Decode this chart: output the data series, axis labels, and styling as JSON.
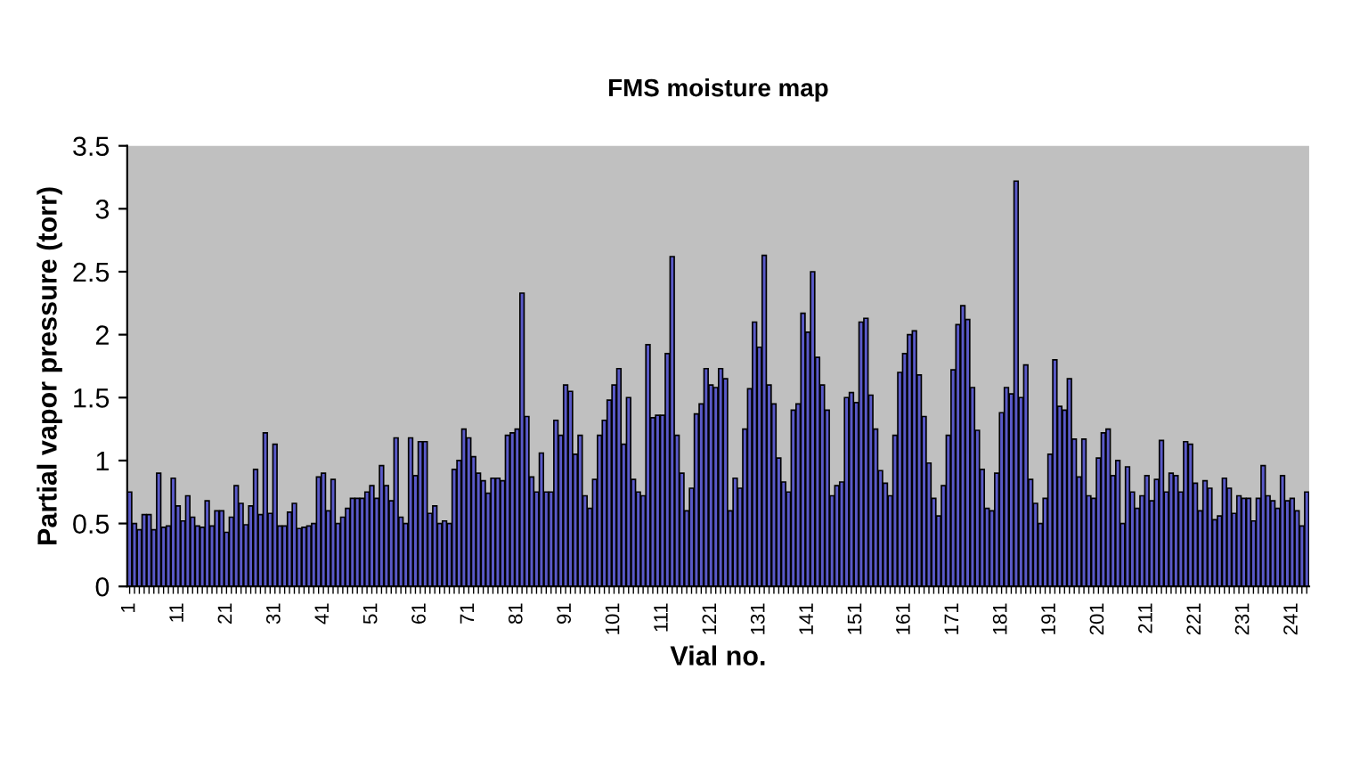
{
  "chart_data": {
    "type": "bar",
    "title": "FMS moisture map",
    "xlabel": "Vial no.",
    "ylabel": "Partial vapor pressure (torr)",
    "categories": [
      "1",
      null,
      null,
      null,
      null,
      null,
      null,
      null,
      null,
      null,
      "11",
      null,
      null,
      null,
      null,
      null,
      null,
      null,
      null,
      null,
      "21",
      null,
      null,
      null,
      null,
      null,
      null,
      null,
      null,
      null,
      "31",
      null,
      null,
      null,
      null,
      null,
      null,
      null,
      null,
      null,
      "41",
      null,
      null,
      null,
      null,
      null,
      null,
      null,
      null,
      null,
      "51",
      null,
      null,
      null,
      null,
      null,
      null,
      null,
      null,
      null,
      "61",
      null,
      null,
      null,
      null,
      null,
      null,
      null,
      null,
      null,
      "71",
      null,
      null,
      null,
      null,
      null,
      null,
      null,
      null,
      null,
      "81",
      null,
      null,
      null,
      null,
      null,
      null,
      null,
      null,
      null,
      "91",
      null,
      null,
      null,
      null,
      null,
      null,
      null,
      null,
      null,
      "101",
      null,
      null,
      null,
      null,
      null,
      null,
      null,
      null,
      null,
      "111",
      null,
      null,
      null,
      null,
      null,
      null,
      null,
      null,
      null,
      "121",
      null,
      null,
      null,
      null,
      null,
      null,
      null,
      null,
      null,
      "131",
      null,
      null,
      null,
      null,
      null,
      null,
      null,
      null,
      null,
      "141",
      null,
      null,
      null,
      null,
      null,
      null,
      null,
      null,
      null,
      "151",
      null,
      null,
      null,
      null,
      null,
      null,
      null,
      null,
      null,
      "161",
      null,
      null,
      null,
      null,
      null,
      null,
      null,
      null,
      null,
      "171",
      null,
      null,
      null,
      null,
      null,
      null,
      null,
      null,
      null,
      "181",
      null,
      null,
      null,
      null,
      null,
      null,
      null,
      null,
      null,
      "191",
      null,
      null,
      null,
      null,
      null,
      null,
      null,
      null,
      null,
      "201",
      null,
      null,
      null,
      null,
      null,
      null,
      null,
      null,
      null,
      "211",
      null,
      null,
      null,
      null,
      null,
      null,
      null,
      null,
      null,
      "221",
      null,
      null,
      null,
      null,
      null,
      null,
      null,
      null,
      null,
      "231",
      null,
      null,
      null,
      null,
      null,
      null,
      null,
      null,
      null,
      "241",
      null,
      null,
      null
    ],
    "values": [
      0.75,
      0.5,
      0.45,
      0.57,
      0.57,
      0.45,
      0.9,
      0.47,
      0.48,
      0.86,
      0.64,
      0.52,
      0.72,
      0.55,
      0.48,
      0.47,
      0.68,
      0.48,
      0.6,
      0.6,
      0.43,
      0.55,
      0.8,
      0.66,
      0.49,
      0.64,
      0.93,
      0.57,
      1.22,
      0.58,
      1.13,
      0.48,
      0.48,
      0.59,
      0.66,
      0.46,
      0.47,
      0.48,
      0.5,
      0.87,
      0.9,
      0.6,
      0.85,
      0.5,
      0.55,
      0.62,
      0.7,
      0.7,
      0.7,
      0.75,
      0.8,
      0.7,
      0.96,
      0.8,
      0.68,
      1.18,
      0.55,
      0.5,
      1.18,
      0.88,
      1.15,
      1.15,
      0.58,
      0.64,
      0.5,
      0.52,
      0.5,
      0.93,
      1.0,
      1.25,
      1.18,
      1.03,
      0.9,
      0.84,
      0.74,
      0.86,
      0.86,
      0.84,
      1.2,
      1.22,
      1.25,
      2.33,
      1.35,
      0.87,
      0.75,
      1.06,
      0.75,
      0.75,
      1.32,
      1.2,
      1.6,
      1.55,
      1.05,
      1.2,
      0.72,
      0.62,
      0.85,
      1.2,
      1.32,
      1.48,
      1.6,
      1.73,
      1.13,
      1.5,
      0.85,
      0.75,
      0.72,
      1.92,
      1.34,
      1.36,
      1.36,
      1.85,
      2.62,
      1.2,
      0.9,
      0.6,
      0.78,
      1.37,
      1.45,
      1.73,
      1.6,
      1.58,
      1.73,
      1.65,
      0.6,
      0.86,
      0.78,
      1.25,
      1.57,
      2.1,
      1.9,
      2.63,
      1.6,
      1.45,
      1.02,
      0.83,
      0.75,
      1.4,
      1.45,
      2.17,
      2.02,
      2.5,
      1.82,
      1.6,
      1.4,
      0.72,
      0.8,
      0.83,
      1.5,
      1.54,
      1.46,
      2.1,
      2.13,
      1.52,
      1.25,
      0.92,
      0.82,
      0.72,
      1.2,
      1.7,
      1.85,
      2.0,
      2.03,
      1.68,
      1.35,
      0.98,
      0.7,
      0.56,
      0.8,
      1.2,
      1.72,
      2.08,
      2.23,
      2.12,
      1.58,
      1.24,
      0.93,
      0.62,
      0.6,
      0.9,
      1.38,
      1.58,
      1.53,
      3.22,
      1.5,
      1.76,
      0.85,
      0.66,
      0.5,
      0.7,
      1.05,
      1.8,
      1.43,
      1.4,
      1.65,
      1.17,
      0.87,
      1.17,
      0.72,
      0.7,
      1.02,
      1.22,
      1.25,
      0.88,
      1.0,
      0.5,
      0.95,
      0.75,
      0.62,
      0.72,
      0.88,
      0.68,
      0.85,
      1.16,
      0.75,
      0.9,
      0.88,
      0.75,
      1.15,
      1.13,
      0.82,
      0.6,
      0.84,
      0.78,
      0.53,
      0.56,
      0.86,
      0.78,
      0.58,
      0.72,
      0.7,
      0.7,
      0.52,
      0.7,
      0.96,
      0.72,
      0.68,
      0.62,
      0.88,
      0.68,
      0.7,
      0.6,
      0.48,
      0.75
    ],
    "color": "#5a5ac8",
    "ylim": [
      0,
      3.5
    ],
    "yticks": [
      0,
      0.5,
      1,
      1.5,
      2,
      2.5,
      3,
      3.5
    ],
    "grid": false,
    "legend": false
  }
}
